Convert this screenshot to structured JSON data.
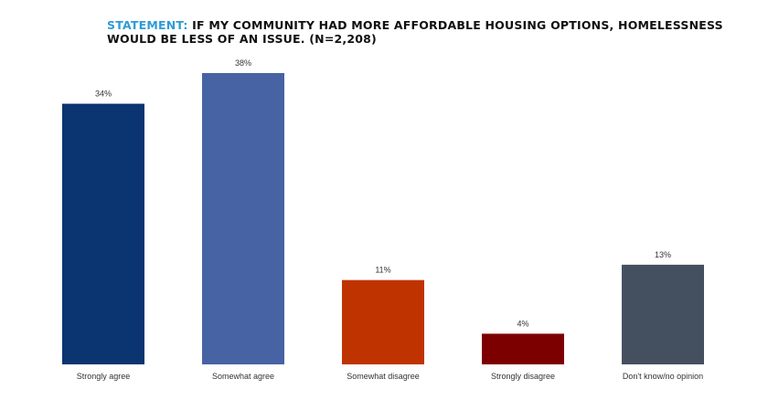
{
  "title": {
    "lead": "STATEMENT:",
    "text": "IF MY COMMUNITY HAD MORE AFFORDABLE HOUSING OPTIONS, HOMELESSNESS WOULD BE LESS OF AN ISSUE. (N=2,208)"
  },
  "colors": {
    "lead": "#2e9bd6",
    "title": "#111111"
  },
  "chart_data": {
    "type": "bar",
    "title": "STATEMENT: IF MY COMMUNITY HAD MORE AFFORDABLE HOUSING OPTIONS, HOMELESSNESS WOULD BE LESS OF AN ISSUE. (N=2,208)",
    "categories": [
      "Strongly agree",
      "Somewhat agree",
      "Somewhat disagree",
      "Strongly disagree",
      "Don't know/no opinion"
    ],
    "values": [
      34,
      38,
      11,
      4,
      13
    ],
    "data_labels": [
      "34%",
      "38%",
      "11%",
      "4%",
      "13%"
    ],
    "bar_colors": [
      "#0a3571",
      "#4763a3",
      "#bf3300",
      "#7d0000",
      "#44505f"
    ],
    "xlabel": "",
    "ylabel": "",
    "ylim": [
      0,
      38
    ],
    "grid": false,
    "legend": "none"
  }
}
